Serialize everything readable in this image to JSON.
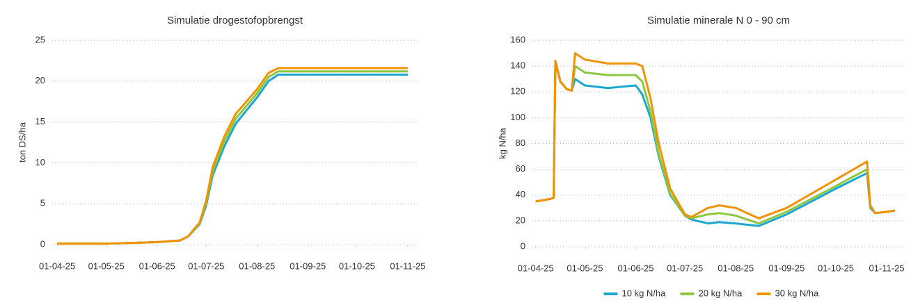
{
  "chart_data": [
    {
      "type": "line",
      "title": "Simulatie drogestofopbrengst",
      "y_label": "ton DS/ha",
      "x": [
        "2025-04-01",
        "2025-05-01",
        "2025-06-01",
        "2025-06-15",
        "2025-06-20",
        "2025-06-27",
        "2025-07-01",
        "2025-07-05",
        "2025-07-12",
        "2025-07-19",
        "2025-08-01",
        "2025-08-08",
        "2025-08-14",
        "2025-11-01"
      ],
      "series": [
        {
          "name": "10 kg N/ha",
          "color": "#1ba7cf",
          "values": [
            0.1,
            0.1,
            0.3,
            0.5,
            1.0,
            2.5,
            4.8,
            8.5,
            12.0,
            14.8,
            18.0,
            20.0,
            20.8,
            20.8
          ]
        },
        {
          "name": "20 kg N/ha",
          "color": "#8dc63f",
          "values": [
            0.1,
            0.1,
            0.3,
            0.5,
            1.0,
            2.6,
            5.1,
            9.0,
            12.6,
            15.4,
            18.5,
            20.5,
            21.2,
            21.2
          ]
        },
        {
          "name": "30 kg N/ha",
          "color": "#f39200",
          "values": [
            0.1,
            0.1,
            0.3,
            0.5,
            1.0,
            2.7,
            5.4,
            9.5,
            13.2,
            16.0,
            19.0,
            21.0,
            21.6,
            21.6
          ]
        }
      ],
      "xlim": [
        "2025-03-29",
        "2025-11-07"
      ],
      "xticks": [
        {
          "value": "2025-04-01",
          "label": "01-04-25"
        },
        {
          "value": "2025-05-01",
          "label": "01-05-25"
        },
        {
          "value": "2025-06-01",
          "label": "01-06-25"
        },
        {
          "value": "2025-07-01",
          "label": "01-07-25"
        },
        {
          "value": "2025-08-01",
          "label": "01-08-25"
        },
        {
          "value": "2025-09-01",
          "label": "01-09-25"
        },
        {
          "value": "2025-10-01",
          "label": "01-10-25"
        },
        {
          "value": "2025-11-01",
          "label": "01-11-25"
        }
      ],
      "ylim": [
        0,
        25
      ],
      "yticks": [
        0,
        5,
        10,
        15,
        20,
        25
      ],
      "grid": true,
      "legend": false
    },
    {
      "type": "line",
      "title": "Simulatie minerale N 0 - 90 cm",
      "y_label": "kg N/ha",
      "x": [
        "2025-04-01",
        "2025-04-10",
        "2025-04-12",
        "2025-04-13",
        "2025-04-16",
        "2025-04-20",
        "2025-04-23",
        "2025-04-25",
        "2025-05-01",
        "2025-05-15",
        "2025-06-01",
        "2025-06-05",
        "2025-06-10",
        "2025-06-15",
        "2025-06-22",
        "2025-07-01",
        "2025-07-05",
        "2025-07-15",
        "2025-07-22",
        "2025-08-01",
        "2025-08-15",
        "2025-09-01",
        "2025-10-01",
        "2025-10-20",
        "2025-10-22",
        "2025-10-25",
        "2025-11-01",
        "2025-11-06"
      ],
      "series": [
        {
          "name": "10 kg N/ha",
          "color": "#1ba7cf",
          "values": [
            35,
            37,
            38,
            144,
            128,
            122,
            121,
            130,
            125,
            123,
            125,
            118,
            100,
            70,
            40,
            24,
            21,
            18,
            19,
            18,
            16,
            25,
            45,
            57,
            30,
            26,
            27,
            28
          ]
        },
        {
          "name": "20 kg N/ha",
          "color": "#8dc63f",
          "values": [
            35,
            37,
            38,
            144,
            128,
            122,
            121,
            140,
            135,
            133,
            133,
            128,
            105,
            72,
            41,
            24,
            22,
            25,
            26,
            24,
            18,
            27,
            47,
            60,
            31,
            26,
            27,
            28
          ]
        },
        {
          "name": "30 kg N/ha",
          "color": "#f39200",
          "values": [
            35,
            37,
            38,
            144,
            128,
            122,
            121,
            150,
            145,
            142,
            142,
            140,
            115,
            80,
            45,
            25,
            23,
            30,
            32,
            30,
            22,
            30,
            52,
            66,
            32,
            26,
            27,
            28
          ]
        }
      ],
      "xlim": [
        "2025-03-30",
        "2025-11-12"
      ],
      "xticks": [
        {
          "value": "2025-04-01",
          "label": "01-04-25"
        },
        {
          "value": "2025-05-01",
          "label": "01-05-25"
        },
        {
          "value": "2025-06-01",
          "label": "01-06-25"
        },
        {
          "value": "2025-07-01",
          "label": "01-07-25"
        },
        {
          "value": "2025-08-01",
          "label": "01-08-25"
        },
        {
          "value": "2025-09-01",
          "label": "01-09-25"
        },
        {
          "value": "2025-10-01",
          "label": "01-10-25"
        },
        {
          "value": "2025-11-01",
          "label": "01-11-25"
        }
      ],
      "ylim": [
        0,
        160
      ],
      "yticks": [
        0,
        20,
        40,
        60,
        80,
        100,
        120,
        140,
        160
      ],
      "grid": true,
      "legend": "bottom"
    }
  ]
}
